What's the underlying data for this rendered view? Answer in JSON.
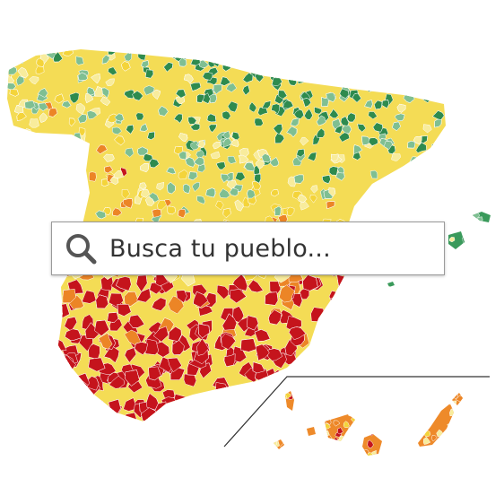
{
  "search": {
    "placeholder": "Busca tu pueblo..."
  }
}
